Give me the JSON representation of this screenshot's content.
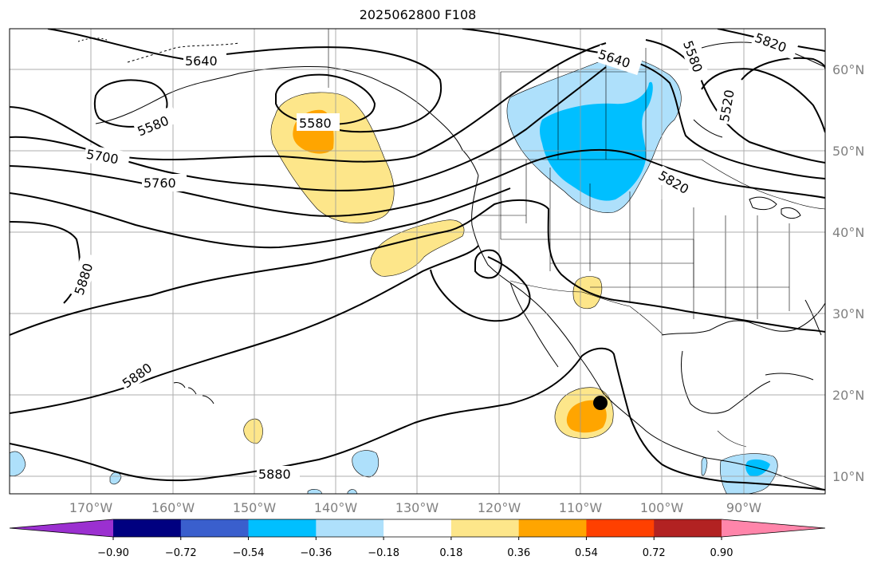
{
  "title": "2025062800 F108",
  "colors": {
    "grid": "#9a9a9a",
    "contour": "#000000",
    "light_blue": "#aee0fb",
    "blue": "#00bfff",
    "yellow": "#fde68a",
    "orange": "#ffa500",
    "axis_label": "#808080"
  },
  "latitude_labels": [
    "60°N",
    "50°N",
    "40°N",
    "30°N",
    "20°N",
    "10°N"
  ],
  "longitude_labels": [
    "170°W",
    "160°W",
    "150°W",
    "140°W",
    "130°W",
    "120°W",
    "110°W",
    "100°W",
    "90°W"
  ],
  "contour_labels": [
    "5640",
    "5580",
    "5580",
    "5700",
    "5760",
    "5880",
    "5880",
    "5880",
    "5640",
    "5580",
    "5820",
    "5820",
    "5520"
  ],
  "colorbar": {
    "ticks": [
      "−0.90",
      "−0.72",
      "−0.54",
      "−0.36",
      "−0.18",
      "0.18",
      "0.36",
      "0.54",
      "0.72",
      "0.90"
    ],
    "segments": [
      "#9b30d0",
      "#000080",
      "#3a5fcd",
      "#00bfff",
      "#aee0fb",
      "#ffffff",
      "#fde68a",
      "#ffa500",
      "#ff4000",
      "#b22222",
      "#ff85aa"
    ],
    "extend": "both"
  },
  "marker": {
    "shape": "filled circle",
    "color": "#000000"
  },
  "chart_data": {
    "type": "map",
    "field": "500 hPa geopotential height contours with shaded anomaly",
    "contour_levels": [
      5520,
      5580,
      5640,
      5700,
      5760,
      5820,
      5880
    ],
    "shading_range": [
      -0.9,
      0.9
    ],
    "shading_interval": 0.18,
    "lon_range": [
      -180,
      -80
    ],
    "lat_range": [
      8,
      65
    ],
    "grid": true
  }
}
